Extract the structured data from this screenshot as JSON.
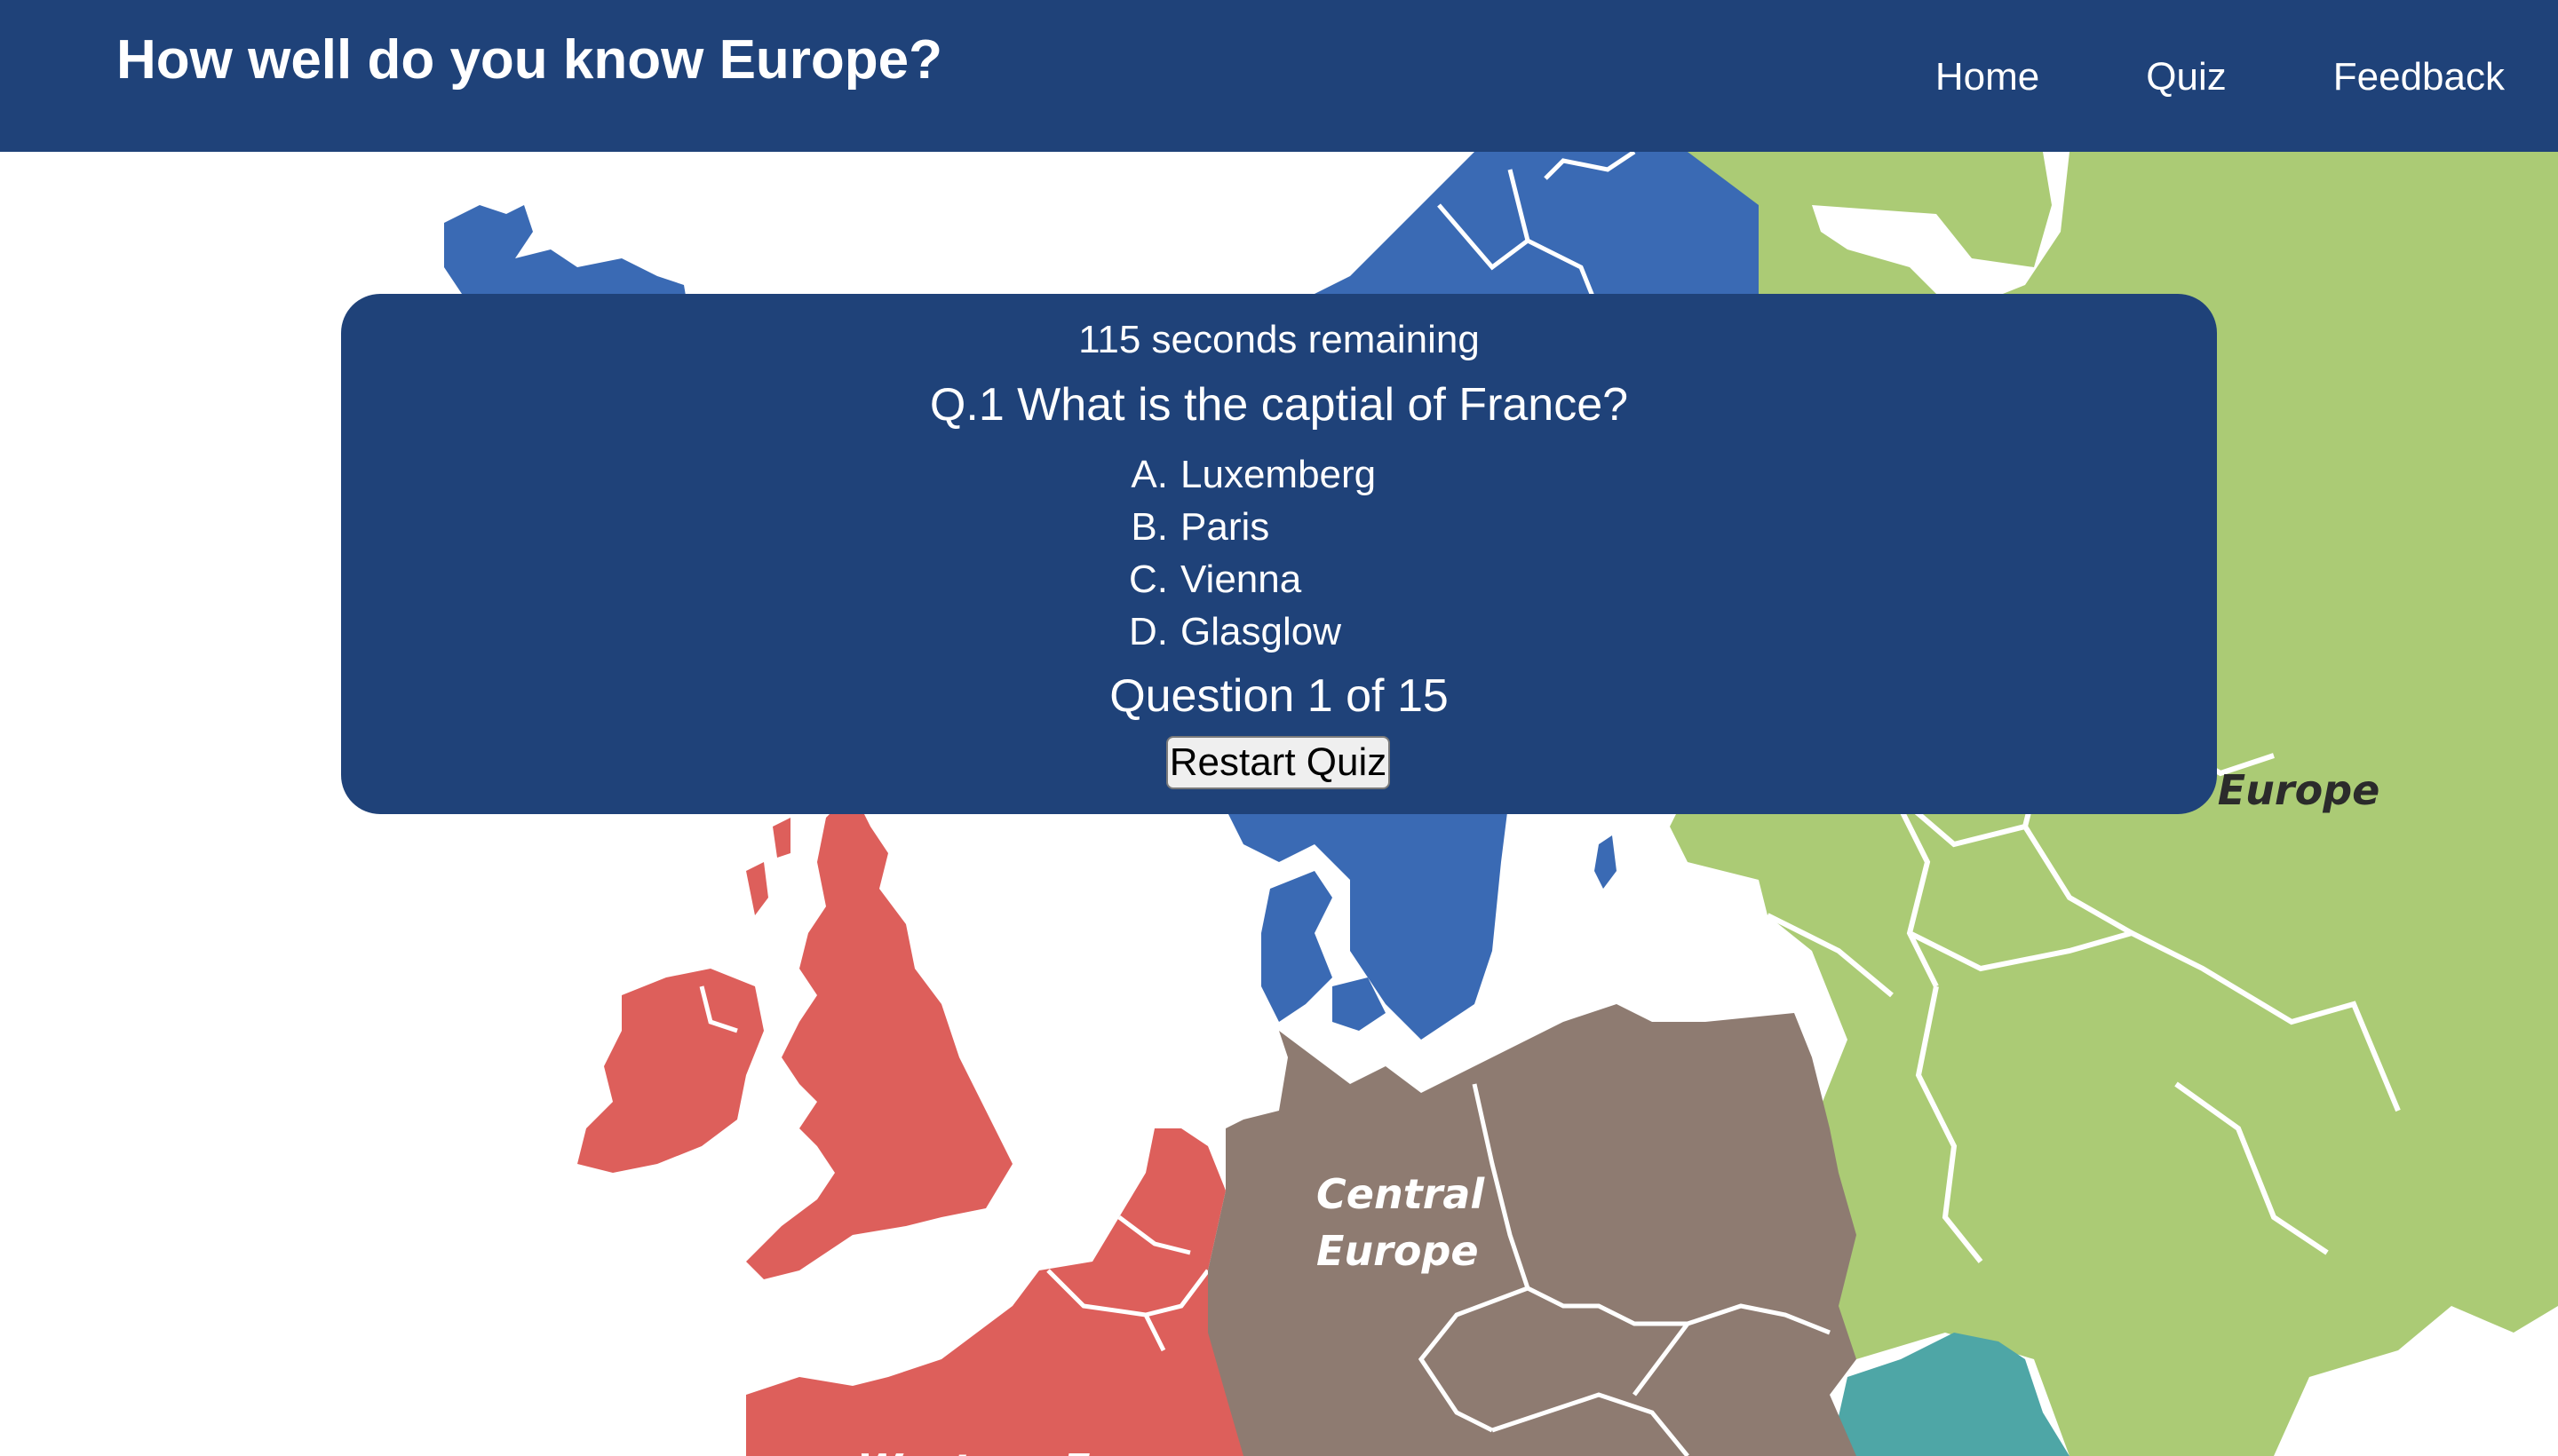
{
  "header": {
    "title": "How well do you know Europe?",
    "nav": [
      {
        "label": "Home"
      },
      {
        "label": "Quiz"
      },
      {
        "label": "Feedback"
      }
    ]
  },
  "map": {
    "labels": {
      "central": [
        "Central",
        "Europe"
      ],
      "eastern_partial": "n Europe",
      "western_partial": "Western Europe"
    },
    "colors": {
      "northern": "#3a6ab4",
      "western": "#dd5f5b",
      "central": "#8e7b71",
      "eastern": "#abcb75",
      "southeastern": "#4ea6a6",
      "border": "#ffffff",
      "water": "#ffffff"
    }
  },
  "quiz": {
    "timer_text": "115 seconds remaining",
    "question_text": "Q.1 What is the captial of France?",
    "answers": [
      {
        "letter": "A.",
        "text": "Luxemberg"
      },
      {
        "letter": "B.",
        "text": "Paris"
      },
      {
        "letter": "C.",
        "text": "Vienna"
      },
      {
        "letter": "D.",
        "text": "Glasglow"
      }
    ],
    "progress_text": "Question 1 of 15",
    "restart_label": "Restart Quiz"
  },
  "colors": {
    "header_bg": "#1f4279",
    "panel_bg": "#1f4279",
    "text": "#ffffff"
  }
}
